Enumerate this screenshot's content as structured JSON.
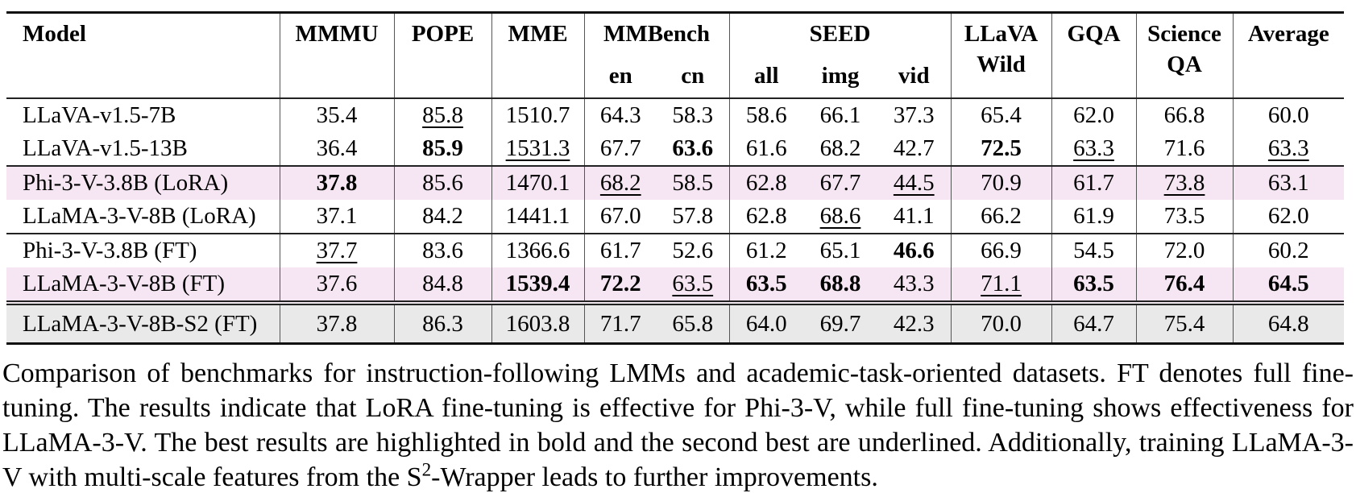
{
  "colors": {
    "highlight_pink": "#f6e6f3",
    "highlight_gray": "#e9e9e9",
    "rule": "#111111",
    "column_divider": "#555555"
  },
  "table": {
    "header": [
      {
        "line1": "Model",
        "line2": "",
        "type": "model"
      },
      {
        "line1": "MMMU",
        "line2": ""
      },
      {
        "line1": "POPE",
        "line2": ""
      },
      {
        "line1": "MME",
        "line2": ""
      },
      {
        "line1": "MMBench",
        "subs": [
          "en",
          "cn"
        ]
      },
      {
        "line1": "SEED",
        "subs": [
          "all",
          "img",
          "vid"
        ]
      },
      {
        "line1": "LLaVA",
        "line2": "Wild"
      },
      {
        "line1": "GQA",
        "line2": ""
      },
      {
        "line1": "Science",
        "line2": "QA"
      },
      {
        "line1": "Average",
        "line2": ""
      }
    ],
    "rows": [
      {
        "model": "LLaVA-v1.5-7B",
        "highlight": "none",
        "separator_above": "none",
        "cells": [
          {
            "v": "35.4"
          },
          {
            "v": "85.8",
            "u": true
          },
          {
            "v": "1510.7"
          },
          {
            "v": "64.3"
          },
          {
            "v": "58.3"
          },
          {
            "v": "58.6"
          },
          {
            "v": "66.1"
          },
          {
            "v": "37.3"
          },
          {
            "v": "65.4"
          },
          {
            "v": "62.0"
          },
          {
            "v": "66.8"
          },
          {
            "v": "60.0"
          }
        ]
      },
      {
        "model": "LLaVA-v1.5-13B",
        "highlight": "none",
        "separator_above": "none",
        "cells": [
          {
            "v": "36.4"
          },
          {
            "v": "85.9",
            "b": true
          },
          {
            "v": "1531.3",
            "u": true
          },
          {
            "v": "67.7"
          },
          {
            "v": "63.6",
            "b": true
          },
          {
            "v": "61.6"
          },
          {
            "v": "68.2"
          },
          {
            "v": "42.7"
          },
          {
            "v": "72.5",
            "b": true
          },
          {
            "v": "63.3",
            "u": true
          },
          {
            "v": "71.6"
          },
          {
            "v": "63.3",
            "u": true
          }
        ]
      },
      {
        "model": "Phi-3-V-3.8B (LoRA)",
        "highlight": "pink",
        "separator_above": "solid",
        "cells": [
          {
            "v": "37.8",
            "b": true
          },
          {
            "v": "85.6"
          },
          {
            "v": "1470.1"
          },
          {
            "v": "68.2",
            "u": true
          },
          {
            "v": "58.5"
          },
          {
            "v": "62.8"
          },
          {
            "v": "67.7"
          },
          {
            "v": "44.5",
            "u": true
          },
          {
            "v": "70.9"
          },
          {
            "v": "61.7"
          },
          {
            "v": "73.8",
            "u": true
          },
          {
            "v": "63.1"
          }
        ]
      },
      {
        "model": "LLaMA-3-V-8B (LoRA)",
        "highlight": "none",
        "separator_above": "none",
        "cells": [
          {
            "v": "37.1"
          },
          {
            "v": "84.2"
          },
          {
            "v": "1441.1"
          },
          {
            "v": "67.0"
          },
          {
            "v": "57.8"
          },
          {
            "v": "62.8"
          },
          {
            "v": "68.6",
            "u": true
          },
          {
            "v": "41.1"
          },
          {
            "v": "66.2"
          },
          {
            "v": "61.9"
          },
          {
            "v": "73.5"
          },
          {
            "v": "62.0"
          }
        ]
      },
      {
        "model": "Phi-3-V-3.8B (FT)",
        "highlight": "none",
        "separator_above": "solid",
        "cells": [
          {
            "v": "37.7",
            "u": true
          },
          {
            "v": "83.6"
          },
          {
            "v": "1366.6"
          },
          {
            "v": "61.7"
          },
          {
            "v": "52.6"
          },
          {
            "v": "61.2"
          },
          {
            "v": "65.1"
          },
          {
            "v": "46.6",
            "b": true
          },
          {
            "v": "66.9"
          },
          {
            "v": "54.5"
          },
          {
            "v": "72.0"
          },
          {
            "v": "60.2"
          }
        ]
      },
      {
        "model": "LLaMA-3-V-8B (FT)",
        "highlight": "pink",
        "separator_above": "none",
        "cells": [
          {
            "v": "37.6"
          },
          {
            "v": "84.8"
          },
          {
            "v": "1539.4",
            "b": true
          },
          {
            "v": "72.2",
            "b": true
          },
          {
            "v": "63.5",
            "u": true
          },
          {
            "v": "63.5",
            "b": true
          },
          {
            "v": "68.8",
            "b": true
          },
          {
            "v": "43.3"
          },
          {
            "v": "71.1",
            "u": true
          },
          {
            "v": "63.5",
            "b": true
          },
          {
            "v": "76.4",
            "b": true
          },
          {
            "v": "64.5",
            "b": true
          }
        ]
      },
      {
        "model": "LLaMA-3-V-8B-S2 (FT)",
        "highlight": "gray",
        "separator_above": "double",
        "cells": [
          {
            "v": "37.8"
          },
          {
            "v": "86.3"
          },
          {
            "v": "1603.8"
          },
          {
            "v": "71.7"
          },
          {
            "v": "65.8"
          },
          {
            "v": "64.0"
          },
          {
            "v": "69.7"
          },
          {
            "v": "42.3"
          },
          {
            "v": "70.0"
          },
          {
            "v": "64.7"
          },
          {
            "v": "75.4"
          },
          {
            "v": "64.8"
          }
        ]
      }
    ]
  },
  "caption": {
    "text_before_sup": "Comparison of benchmarks for instruction-following LMMs and academic-task-oriented datasets. FT denotes full fine-tuning. The results indicate that LoRA fine-tuning is effective for Phi-3-V, while full fine-tuning shows effectiveness for LLaMA-3-V. The best results are highlighted in bold and the second best are underlined. Additionally, training LLaMA-3-V with multi-scale features from the S",
    "sup": "2",
    "text_after_sup": "-Wrapper leads to further improvements."
  }
}
